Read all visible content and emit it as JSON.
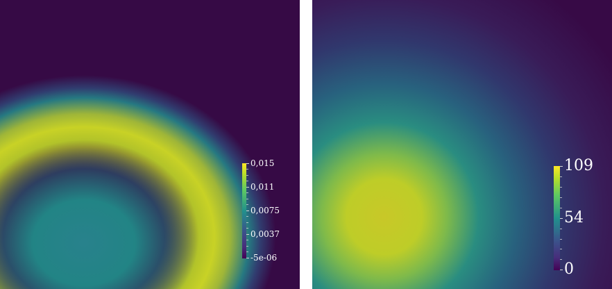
{
  "left_plot": {
    "colormap": "viridis",
    "colorbar_ticks": [
      "0,015",
      "0,011",
      "0,0075",
      "0,0037",
      "-5e-06"
    ],
    "value_range": [
      -5e-06,
      0.015
    ]
  },
  "right_plot": {
    "colormap": "viridis",
    "colorbar_ticks": [
      "109",
      "54",
      "0"
    ],
    "value_range": [
      0,
      109
    ]
  },
  "colors": {
    "background_low": "#360a45",
    "viridis_low": "#440154",
    "viridis_mid": "#21918c",
    "viridis_high": "#fde725"
  }
}
